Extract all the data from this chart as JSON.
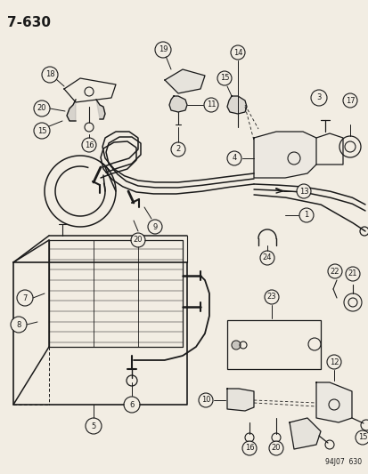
{
  "title": "7-630",
  "watermark": "94J07  630",
  "bg_color": "#f2ede3",
  "line_color": "#1a1a1a",
  "figsize": [
    4.14,
    5.33
  ],
  "dpi": 100
}
